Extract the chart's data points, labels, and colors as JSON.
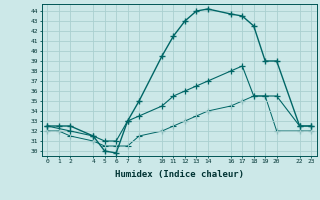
{
  "xlabel": "Humidex (Indice chaleur)",
  "bg_color": "#cce8e8",
  "grid_color": "#aad0d0",
  "line_color": "#006666",
  "xlim": [
    -0.5,
    23.5
  ],
  "ylim": [
    29.5,
    44.7
  ],
  "xticks": [
    0,
    1,
    2,
    4,
    5,
    6,
    7,
    8,
    10,
    11,
    12,
    13,
    14,
    16,
    17,
    18,
    19,
    20,
    22,
    23
  ],
  "yticks": [
    30,
    31,
    32,
    33,
    34,
    35,
    36,
    37,
    38,
    39,
    40,
    41,
    42,
    43,
    44
  ],
  "line1_x": [
    0,
    1,
    2,
    4,
    5,
    6,
    7,
    8,
    10,
    11,
    12,
    13,
    14,
    16,
    17,
    18,
    19,
    20,
    22,
    23
  ],
  "line1_y": [
    32.5,
    32.5,
    32.5,
    31.5,
    30.0,
    29.8,
    33.0,
    35.0,
    39.5,
    41.5,
    43.0,
    44.0,
    44.2,
    43.7,
    43.5,
    42.5,
    39.0,
    39.0,
    32.5,
    32.5
  ],
  "line2_x": [
    0,
    2,
    4,
    5,
    6,
    7,
    8,
    10,
    11,
    12,
    13,
    14,
    16,
    17,
    18,
    19,
    20,
    22,
    23
  ],
  "line2_y": [
    32.5,
    32.0,
    31.5,
    31.0,
    31.0,
    33.0,
    33.5,
    34.5,
    35.5,
    36.0,
    36.5,
    37.0,
    38.0,
    38.5,
    35.5,
    35.5,
    35.5,
    32.5,
    32.5
  ],
  "line3_x": [
    0,
    1,
    2,
    4,
    5,
    6,
    7,
    8,
    10,
    11,
    12,
    13,
    14,
    16,
    17,
    18,
    19,
    20,
    22,
    23
  ],
  "line3_y": [
    32.0,
    32.0,
    31.5,
    31.0,
    30.5,
    30.5,
    30.5,
    31.5,
    32.0,
    32.5,
    33.0,
    33.5,
    34.0,
    34.5,
    35.0,
    35.5,
    35.5,
    32.0,
    32.0,
    32.0
  ]
}
